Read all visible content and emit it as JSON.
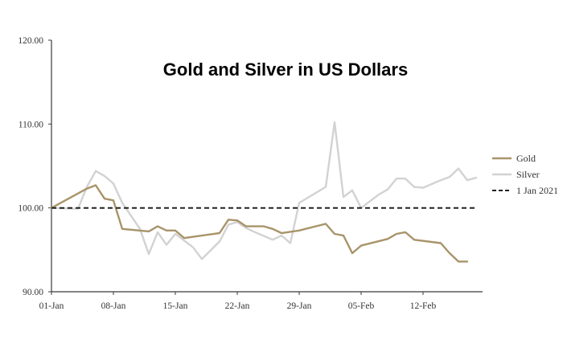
{
  "colors": {
    "gold": "#a8946a",
    "silver": "#d2d2d2",
    "reference": "#222222",
    "axis": "#3a3a3a"
  },
  "chart_data": {
    "type": "line",
    "title": "Gold and Silver in US Dollars",
    "xlabel": "",
    "ylabel": "",
    "ylim": [
      90,
      120
    ],
    "xlim": [
      0,
      46
    ],
    "y_ticks": [
      {
        "value": 90,
        "label": "90.00"
      },
      {
        "value": 100,
        "label": "100.00"
      },
      {
        "value": 110,
        "label": "110.00"
      },
      {
        "value": 120,
        "label": "120.00"
      }
    ],
    "x_ticks": [
      {
        "value": 0,
        "label": "01-Jan"
      },
      {
        "value": 7,
        "label": "08-Jan"
      },
      {
        "value": 14,
        "label": "15-Jan"
      },
      {
        "value": 21,
        "label": "22-Jan"
      },
      {
        "value": 28,
        "label": "29-Jan"
      },
      {
        "value": 35,
        "label": "05-Feb"
      },
      {
        "value": 42,
        "label": "12-Feb"
      }
    ],
    "grid": false,
    "legend_position": "right",
    "series": [
      {
        "name": "Gold",
        "color": "#a8946a",
        "dash": "solid",
        "points": [
          [
            0,
            100.0
          ],
          [
            4,
            102.3
          ],
          [
            5,
            102.7
          ],
          [
            6,
            101.1
          ],
          [
            7,
            100.9
          ],
          [
            8,
            97.5
          ],
          [
            11,
            97.2
          ],
          [
            12,
            97.8
          ],
          [
            13,
            97.3
          ],
          [
            14,
            97.3
          ],
          [
            15,
            96.4
          ],
          [
            17,
            96.7
          ],
          [
            19,
            97.0
          ],
          [
            20,
            98.6
          ],
          [
            21,
            98.5
          ],
          [
            22,
            97.8
          ],
          [
            24,
            97.8
          ],
          [
            25,
            97.5
          ],
          [
            26,
            97.0
          ],
          [
            28,
            97.3
          ],
          [
            31,
            98.1
          ],
          [
            32,
            96.9
          ],
          [
            33,
            96.7
          ],
          [
            34,
            94.6
          ],
          [
            35,
            95.5
          ],
          [
            38,
            96.3
          ],
          [
            39,
            96.9
          ],
          [
            40,
            97.1
          ],
          [
            41,
            96.2
          ],
          [
            44,
            95.8
          ],
          [
            45,
            94.6
          ],
          [
            46,
            93.6
          ],
          [
            47,
            93.6
          ]
        ]
      },
      {
        "name": "Silver",
        "color": "#d2d2d2",
        "dash": "solid",
        "points": [
          [
            0,
            100.0
          ],
          [
            3,
            99.9
          ],
          [
            4,
            102.5
          ],
          [
            5,
            104.4
          ],
          [
            6,
            103.8
          ],
          [
            7,
            102.9
          ],
          [
            8,
            100.6
          ],
          [
            10,
            97.5
          ],
          [
            11,
            94.5
          ],
          [
            12,
            97.1
          ],
          [
            13,
            95.6
          ],
          [
            14,
            96.9
          ],
          [
            16,
            95.3
          ],
          [
            17,
            93.9
          ],
          [
            19,
            96.0
          ],
          [
            20,
            98.0
          ],
          [
            21,
            98.3
          ],
          [
            22,
            97.6
          ],
          [
            23,
            97.1
          ],
          [
            25,
            96.2
          ],
          [
            26,
            96.7
          ],
          [
            27,
            95.8
          ],
          [
            28,
            100.6
          ],
          [
            31,
            102.5
          ],
          [
            32,
            110.2
          ],
          [
            33,
            101.3
          ],
          [
            34,
            102.1
          ],
          [
            35,
            100.0
          ],
          [
            37,
            101.6
          ],
          [
            38,
            102.2
          ],
          [
            39,
            103.5
          ],
          [
            40,
            103.5
          ],
          [
            41,
            102.5
          ],
          [
            42,
            102.4
          ],
          [
            44,
            103.3
          ],
          [
            45,
            103.7
          ],
          [
            46,
            104.7
          ],
          [
            47,
            103.3
          ],
          [
            48,
            103.6
          ]
        ]
      },
      {
        "name": "1 Jan 2021",
        "color": "#222222",
        "dash": "dashed",
        "points": [
          [
            0,
            100.0
          ],
          [
            48,
            100.0
          ]
        ]
      }
    ]
  }
}
